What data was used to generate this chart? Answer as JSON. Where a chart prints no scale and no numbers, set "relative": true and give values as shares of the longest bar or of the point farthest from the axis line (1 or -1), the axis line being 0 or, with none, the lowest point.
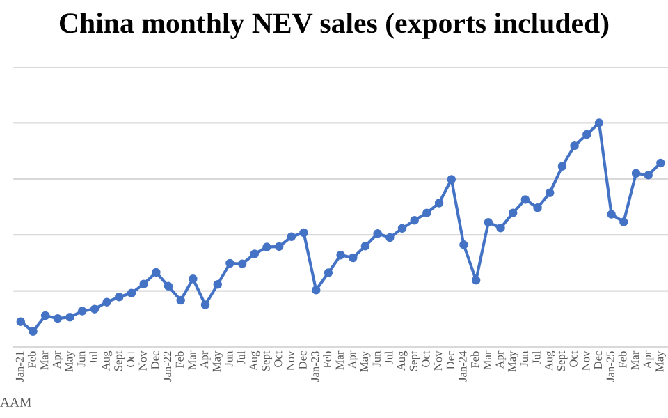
{
  "chart_data": {
    "type": "line",
    "title": "China monthly NEV sales (exports included)",
    "relative": true,
    "grid": "y",
    "marker": "circle",
    "line_style": "solid",
    "annotations": [
      "AAM"
    ],
    "categories": [
      "Jan-21",
      "Feb",
      "Mar",
      "Apr",
      "May",
      "Jun",
      "Jul",
      "Aug",
      "Sept",
      "Oct",
      "Nov",
      "Dec",
      "Jan-22",
      "Feb",
      "Mar",
      "Apr",
      "May",
      "Jun",
      "Jul",
      "Aug",
      "Sept",
      "Oct",
      "Nov",
      "Dec",
      "Jan-23",
      "Feb",
      "Mar",
      "Apr",
      "May",
      "Jun",
      "Jul",
      "Aug",
      "Sept",
      "Oct",
      "Nov",
      "Dec",
      "Jan-24",
      "Feb",
      "Mar",
      "Apr",
      "May",
      "Jun",
      "Jul",
      "Aug",
      "Sept",
      "Oct",
      "Nov",
      "Dec",
      "Jan-25",
      "Feb",
      "Mar",
      "Apr",
      "May"
    ],
    "series": [
      {
        "color": "#4472c4",
        "values": [
          0.113,
          0.069,
          0.14,
          0.127,
          0.133,
          0.16,
          0.169,
          0.2,
          0.223,
          0.24,
          0.281,
          0.333,
          0.271,
          0.208,
          0.304,
          0.188,
          0.279,
          0.373,
          0.371,
          0.415,
          0.446,
          0.448,
          0.492,
          0.51,
          0.254,
          0.331,
          0.41,
          0.398,
          0.45,
          0.506,
          0.488,
          0.529,
          0.565,
          0.598,
          0.642,
          0.748,
          0.456,
          0.298,
          0.556,
          0.531,
          0.598,
          0.658,
          0.621,
          0.688,
          0.806,
          0.898,
          0.948,
          1.0,
          0.592,
          0.558,
          0.775,
          0.767,
          0.821
        ]
      }
    ]
  }
}
